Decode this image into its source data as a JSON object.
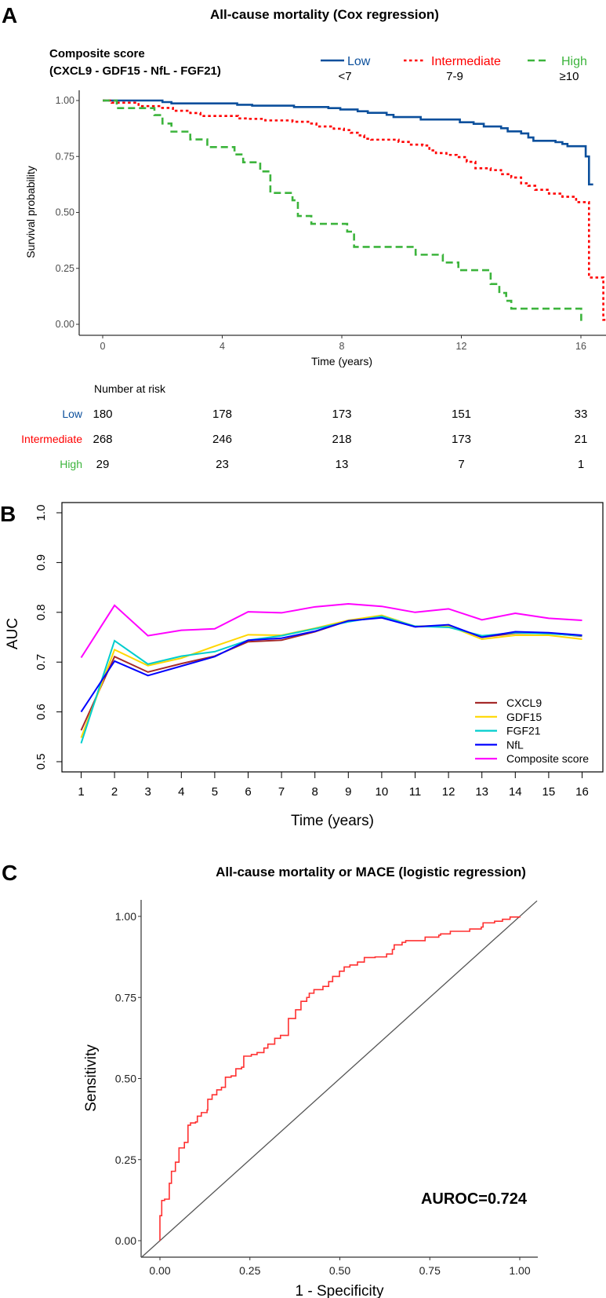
{
  "chart_data": [
    {
      "panel": "A",
      "type": "line",
      "subtype": "kaplan-meier",
      "title": "All-cause mortality (Cox regression)",
      "legend_title": [
        "Composite score",
        "(CXCL9 - GDF15 - NfL - FGF21)"
      ],
      "legend_placement": "top",
      "xlabel": "Time (years)",
      "ylabel": "Survival probability",
      "xlim": [
        -0.8,
        16.84
      ],
      "ylim": [
        0,
        1
      ],
      "xticks": [
        0,
        4,
        8,
        12,
        16
      ],
      "yticks": [
        "0.00",
        "0.25",
        "0.50",
        "0.75",
        "1.00"
      ],
      "series": [
        {
          "name": "Low",
          "range": "<7",
          "color": "#0b4f9c",
          "style": "solid",
          "end": 16.41,
          "steps": [
            [
              0,
              1
            ],
            [
              2.0,
              0.993
            ],
            [
              2.3,
              0.987
            ],
            [
              4.5,
              0.981
            ],
            [
              5.0,
              0.977
            ],
            [
              6.4,
              0.971
            ],
            [
              7.55,
              0.966
            ],
            [
              7.95,
              0.96
            ],
            [
              8.53,
              0.952
            ],
            [
              8.87,
              0.945
            ],
            [
              9.5,
              0.936
            ],
            [
              9.73,
              0.926
            ],
            [
              10.64,
              0.915
            ],
            [
              11.95,
              0.903
            ],
            [
              12.41,
              0.896
            ],
            [
              12.75,
              0.884
            ],
            [
              13.33,
              0.876
            ],
            [
              13.55,
              0.862
            ],
            [
              14.0,
              0.853
            ],
            [
              14.24,
              0.835
            ],
            [
              14.41,
              0.82
            ],
            [
              15.15,
              0.814
            ],
            [
              15.38,
              0.806
            ],
            [
              15.55,
              0.796
            ],
            [
              16.16,
              0.75
            ],
            [
              16.27,
              0.625
            ]
          ]
        },
        {
          "name": "Intermediate",
          "range": "7-9",
          "color": "#ff0000",
          "style": "dotted",
          "end": 16.84,
          "steps": [
            [
              0,
              1
            ],
            [
              0.3,
              0.99
            ],
            [
              1.2,
              0.975
            ],
            [
              1.95,
              0.967
            ],
            [
              2.35,
              0.954
            ],
            [
              2.93,
              0.944
            ],
            [
              3.27,
              0.931
            ],
            [
              4.53,
              0.92
            ],
            [
              4.87,
              0.918
            ],
            [
              5.44,
              0.911
            ],
            [
              6.35,
              0.905
            ],
            [
              6.93,
              0.897
            ],
            [
              7.15,
              0.884
            ],
            [
              7.73,
              0.874
            ],
            [
              8.07,
              0.868
            ],
            [
              8.3,
              0.856
            ],
            [
              8.53,
              0.844
            ],
            [
              8.75,
              0.829
            ],
            [
              8.98,
              0.825
            ],
            [
              9.9,
              0.815
            ],
            [
              10.24,
              0.803
            ],
            [
              10.7,
              0.799
            ],
            [
              10.93,
              0.777
            ],
            [
              11.15,
              0.765
            ],
            [
              11.5,
              0.757
            ],
            [
              11.84,
              0.747
            ],
            [
              12.18,
              0.726
            ],
            [
              12.47,
              0.697
            ],
            [
              12.98,
              0.689
            ],
            [
              13.33,
              0.671
            ],
            [
              13.67,
              0.656
            ],
            [
              14.0,
              0.63
            ],
            [
              14.24,
              0.619
            ],
            [
              14.47,
              0.601
            ],
            [
              14.93,
              0.584
            ],
            [
              15.38,
              0.57
            ],
            [
              15.84,
              0.546
            ],
            [
              16.27,
              0.209
            ],
            [
              16.75,
              0.02
            ]
          ]
        },
        {
          "name": "High",
          "range": "≥10",
          "color": "#3cb43c",
          "style": "dashed",
          "end": 16.01,
          "steps": [
            [
              0,
              1
            ],
            [
              0.47,
              0.966
            ],
            [
              1.73,
              0.935
            ],
            [
              2.0,
              0.897
            ],
            [
              2.3,
              0.861
            ],
            [
              2.93,
              0.826
            ],
            [
              3.5,
              0.792
            ],
            [
              4.41,
              0.759
            ],
            [
              4.7,
              0.724
            ],
            [
              5.27,
              0.683
            ],
            [
              5.61,
              0.587
            ],
            [
              6.35,
              0.554
            ],
            [
              6.53,
              0.484
            ],
            [
              6.98,
              0.449
            ],
            [
              8.18,
              0.414
            ],
            [
              8.41,
              0.346
            ],
            [
              10.47,
              0.311
            ],
            [
              11.38,
              0.276
            ],
            [
              11.9,
              0.242
            ],
            [
              12.98,
              0.18
            ],
            [
              13.27,
              0.14
            ],
            [
              13.5,
              0.105
            ],
            [
              13.67,
              0.07
            ],
            [
              16.01,
              0.0
            ]
          ]
        }
      ],
      "risk_table": {
        "title": "Number at risk",
        "times": [
          0,
          4,
          8,
          12,
          16
        ],
        "rows": [
          {
            "name": "Low",
            "values": [
              "180",
              "178",
              "173",
              "151",
              "33"
            ]
          },
          {
            "name": "Intermediate",
            "values": [
              "268",
              "246",
              "218",
              "173",
              "21"
            ]
          },
          {
            "name": "High",
            "values": [
              "29",
              "23",
              "13",
              "7",
              "1"
            ]
          }
        ]
      }
    },
    {
      "panel": "B",
      "type": "line",
      "title": "",
      "xlabel": "Time (years)",
      "ylabel": "AUC",
      "xlim": [
        1,
        16
      ],
      "ylim": [
        0.5,
        1.0
      ],
      "x": [
        1,
        2,
        3,
        4,
        5,
        6,
        7,
        8,
        9,
        10,
        11,
        12,
        13,
        14,
        15,
        16
      ],
      "yticks": [
        "0.5",
        "0.6",
        "0.7",
        "0.8",
        "0.9",
        "1.0"
      ],
      "legend_placement": "bottom-right",
      "series": [
        {
          "name": "CXCL9",
          "color": "#a52a2a",
          "values": [
            0.563,
            0.711,
            0.68,
            0.697,
            0.712,
            0.741,
            0.744,
            0.761,
            0.783,
            0.791,
            0.771,
            0.774,
            0.75,
            0.758,
            0.758,
            0.752
          ]
        },
        {
          "name": "GDF15",
          "color": "#ffd700",
          "values": [
            0.548,
            0.725,
            0.693,
            0.708,
            0.732,
            0.755,
            0.754,
            0.768,
            0.784,
            0.794,
            0.772,
            0.773,
            0.746,
            0.754,
            0.754,
            0.746
          ]
        },
        {
          "name": "FGF21",
          "color": "#00cdcd",
          "values": [
            0.537,
            0.743,
            0.696,
            0.712,
            0.721,
            0.744,
            0.753,
            0.767,
            0.781,
            0.792,
            0.772,
            0.77,
            0.753,
            0.759,
            0.757,
            0.753
          ]
        },
        {
          "name": "NfL",
          "color": "#0000ff",
          "values": [
            0.6,
            0.702,
            0.673,
            0.692,
            0.711,
            0.744,
            0.748,
            0.762,
            0.783,
            0.789,
            0.771,
            0.775,
            0.75,
            0.761,
            0.759,
            0.754
          ]
        },
        {
          "name": "Composite score",
          "color": "#ff00ff",
          "values": [
            0.709,
            0.814,
            0.753,
            0.764,
            0.767,
            0.801,
            0.799,
            0.811,
            0.817,
            0.812,
            0.8,
            0.807,
            0.785,
            0.798,
            0.788,
            0.784
          ]
        }
      ]
    },
    {
      "panel": "C",
      "type": "line",
      "subtype": "roc",
      "title": "All-cause mortality or MACE (logistic regression)",
      "xlabel": "1 - Specificity",
      "ylabel": "Sensitivity",
      "xlim": [
        -0.05,
        1.05
      ],
      "ylim": [
        -0.05,
        1.05
      ],
      "xticks": [
        "0.00",
        "0.25",
        "0.50",
        "0.75",
        "1.00"
      ],
      "yticks": [
        "0.00",
        "0.25",
        "0.50",
        "0.75",
        "1.00"
      ],
      "annotation": "AUROC=0.724",
      "color": "#ff3030",
      "points": [
        [
          0,
          0
        ],
        [
          0,
          0.077
        ],
        [
          0.005,
          0.124
        ],
        [
          0.013,
          0.128
        ],
        [
          0.026,
          0.138
        ],
        [
          0.026,
          0.177
        ],
        [
          0.032,
          0.214
        ],
        [
          0.043,
          0.242
        ],
        [
          0.053,
          0.252
        ],
        [
          0.053,
          0.286
        ],
        [
          0.068,
          0.29
        ],
        [
          0.068,
          0.303
        ],
        [
          0.078,
          0.303
        ],
        [
          0.078,
          0.356
        ],
        [
          0.085,
          0.363
        ],
        [
          0.099,
          0.366
        ],
        [
          0.104,
          0.384
        ],
        [
          0.115,
          0.395
        ],
        [
          0.131,
          0.403
        ],
        [
          0.133,
          0.436
        ],
        [
          0.145,
          0.45
        ],
        [
          0.158,
          0.465
        ],
        [
          0.171,
          0.473
        ],
        [
          0.182,
          0.504
        ],
        [
          0.198,
          0.508
        ],
        [
          0.211,
          0.53
        ],
        [
          0.227,
          0.535
        ],
        [
          0.233,
          0.569
        ],
        [
          0.254,
          0.574
        ],
        [
          0.27,
          0.58
        ],
        [
          0.289,
          0.594
        ],
        [
          0.3,
          0.606
        ],
        [
          0.319,
          0.624
        ],
        [
          0.335,
          0.633
        ],
        [
          0.357,
          0.642
        ],
        [
          0.357,
          0.685
        ],
        [
          0.374,
          0.685
        ],
        [
          0.377,
          0.712
        ],
        [
          0.392,
          0.738
        ],
        [
          0.408,
          0.75
        ],
        [
          0.415,
          0.763
        ],
        [
          0.428,
          0.774
        ],
        [
          0.453,
          0.784
        ],
        [
          0.469,
          0.799
        ],
        [
          0.48,
          0.815
        ],
        [
          0.499,
          0.831
        ],
        [
          0.512,
          0.844
        ],
        [
          0.528,
          0.85
        ],
        [
          0.549,
          0.859
        ],
        [
          0.568,
          0.873
        ],
        [
          0.598,
          0.875
        ],
        [
          0.63,
          0.884
        ],
        [
          0.646,
          0.898
        ],
        [
          0.651,
          0.912
        ],
        [
          0.673,
          0.92
        ],
        [
          0.683,
          0.925
        ],
        [
          0.737,
          0.925
        ],
        [
          0.737,
          0.936
        ],
        [
          0.775,
          0.942
        ],
        [
          0.78,
          0.946
        ],
        [
          0.807,
          0.954
        ],
        [
          0.861,
          0.961
        ],
        [
          0.893,
          0.967
        ],
        [
          0.898,
          0.98
        ],
        [
          0.93,
          0.985
        ],
        [
          0.952,
          0.991
        ],
        [
          0.973,
          0.998
        ],
        [
          1.0,
          1.0
        ]
      ]
    }
  ],
  "panel_labels": [
    "A",
    "B",
    "C"
  ]
}
